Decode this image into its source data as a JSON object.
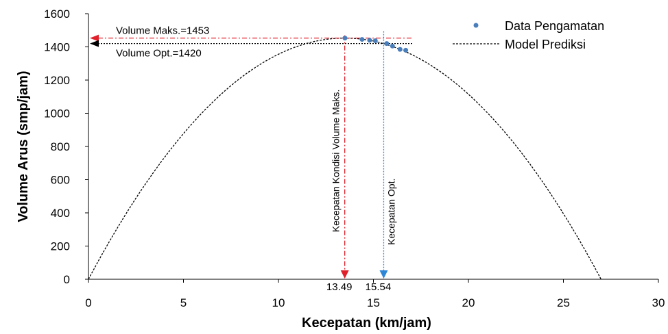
{
  "chart_data": {
    "type": "scatter",
    "xlabel": "Kecepatan (km/jam)",
    "ylabel": "Volume Arus (smp/jam)",
    "xlim": [
      0,
      30
    ],
    "ylim": [
      0,
      1600
    ],
    "x_ticks": [
      "0",
      "5",
      "10",
      "15",
      "20",
      "25",
      "30"
    ],
    "y_ticks": [
      "0",
      "200",
      "400",
      "600",
      "800",
      "1000",
      "1200",
      "1400",
      "1600"
    ],
    "grid": false,
    "legend_position": "top-right",
    "series": [
      {
        "name": "Data Pengamatan",
        "kind": "scatter",
        "color": "#4a7ebb",
        "points": [
          [
            13.5,
            1453
          ],
          [
            14.4,
            1445
          ],
          [
            14.8,
            1440
          ],
          [
            15.1,
            1437
          ],
          [
            15.7,
            1420
          ],
          [
            16.0,
            1405
          ],
          [
            16.4,
            1385
          ],
          [
            16.7,
            1380
          ]
        ]
      },
      {
        "name": "Model Prediksi",
        "kind": "line",
        "style": "dashed",
        "color": "#000000",
        "model": {
          "type": "parabola",
          "x_zero_left": 0,
          "x_zero_right": 26.98,
          "x_peak": 13.49,
          "y_peak": 1453
        }
      }
    ],
    "annotations": {
      "volume_max_label": "Volume Maks.=1453",
      "volume_max_value": 1453,
      "volume_opt_label": "Volume Opt.=1420",
      "volume_opt_value": 1420,
      "speed_max_label": "Kecepatan Kondisi Volume Maks.",
      "speed_max_value": 13.49,
      "speed_max_tick": "13.49",
      "speed_opt_label": "Kecepatan Opt.",
      "speed_opt_value": 15.54,
      "speed_opt_tick": "15.54",
      "max_color": "#e0202a",
      "opt_color": "#2e86d6"
    }
  }
}
